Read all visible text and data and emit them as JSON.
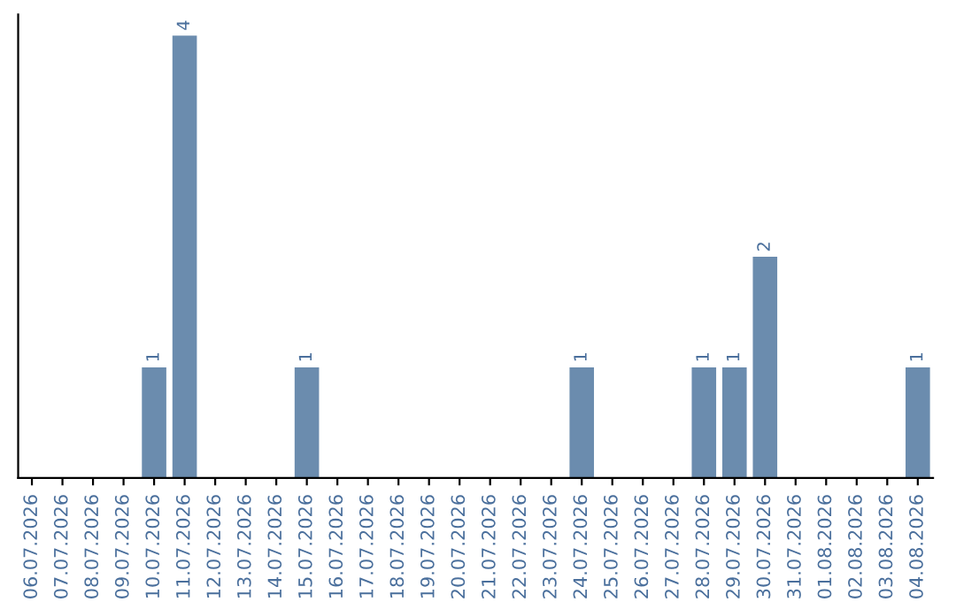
{
  "chart_data": {
    "type": "bar",
    "categories": [
      "06.07.2026",
      "07.07.2026",
      "08.07.2026",
      "09.07.2026",
      "10.07.2026",
      "11.07.2026",
      "12.07.2026",
      "13.07.2026",
      "14.07.2026",
      "15.07.2026",
      "16.07.2026",
      "17.07.2026",
      "18.07.2026",
      "19.07.2026",
      "20.07.2026",
      "21.07.2026",
      "22.07.2026",
      "23.07.2026",
      "24.07.2026",
      "25.07.2026",
      "26.07.2026",
      "27.07.2026",
      "28.07.2026",
      "29.07.2026",
      "30.07.2026",
      "31.07.2026",
      "01.08.2026",
      "02.08.2026",
      "03.08.2026",
      "04.08.2026"
    ],
    "values": [
      0,
      0,
      0,
      0,
      1,
      4,
      0,
      0,
      0,
      1,
      0,
      0,
      0,
      0,
      0,
      0,
      0,
      0,
      1,
      0,
      0,
      0,
      1,
      1,
      2,
      0,
      0,
      0,
      0,
      1
    ],
    "value_labels": [
      null,
      null,
      null,
      null,
      "1",
      "4",
      null,
      null,
      null,
      "1",
      null,
      null,
      null,
      null,
      null,
      null,
      null,
      null,
      "1",
      null,
      null,
      null,
      "1",
      "1",
      "2",
      null,
      null,
      null,
      null,
      "1"
    ],
    "color": "#6b8cae",
    "tick_labels": "x",
    "grid": false,
    "legend": false
  }
}
